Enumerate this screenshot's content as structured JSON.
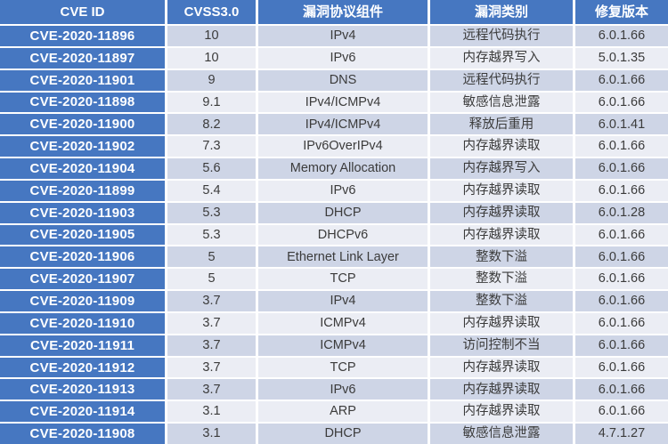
{
  "chart_data": {
    "type": "table",
    "columns": [
      "CVE ID",
      "CVSS3.0",
      "漏洞协议组件",
      "漏洞类别",
      "修复版本"
    ],
    "rows": [
      [
        "CVE-2020-11896",
        "10",
        "IPv4",
        "远程代码执行",
        "6.0.1.66"
      ],
      [
        "CVE-2020-11897",
        "10",
        "IPv6",
        "内存越界写入",
        "5.0.1.35"
      ],
      [
        "CVE-2020-11901",
        "9",
        "DNS",
        "远程代码执行",
        "6.0.1.66"
      ],
      [
        "CVE-2020-11898",
        "9.1",
        "IPv4/ICMPv4",
        "敏感信息泄露",
        "6.0.1.66"
      ],
      [
        "CVE-2020-11900",
        "8.2",
        "IPv4/ICMPv4",
        "释放后重用",
        "6.0.1.41"
      ],
      [
        "CVE-2020-11902",
        "7.3",
        "IPv6OverIPv4",
        "内存越界读取",
        "6.0.1.66"
      ],
      [
        "CVE-2020-11904",
        "5.6",
        "Memory Allocation",
        "内存越界写入",
        "6.0.1.66"
      ],
      [
        "CVE-2020-11899",
        "5.4",
        "IPv6",
        "内存越界读取",
        "6.0.1.66"
      ],
      [
        "CVE-2020-11903",
        "5.3",
        "DHCP",
        "内存越界读取",
        "6.0.1.28"
      ],
      [
        "CVE-2020-11905",
        "5.3",
        "DHCPv6",
        "内存越界读取",
        "6.0.1.66"
      ],
      [
        "CVE-2020-11906",
        "5",
        "Ethernet Link Layer",
        "整数下溢",
        "6.0.1.66"
      ],
      [
        "CVE-2020-11907",
        "5",
        "TCP",
        "整数下溢",
        "6.0.1.66"
      ],
      [
        "CVE-2020-11909",
        "3.7",
        "IPv4",
        "整数下溢",
        "6.0.1.66"
      ],
      [
        "CVE-2020-11910",
        "3.7",
        "ICMPv4",
        "内存越界读取",
        "6.0.1.66"
      ],
      [
        "CVE-2020-11911",
        "3.7",
        "ICMPv4",
        "访问控制不当",
        "6.0.1.66"
      ],
      [
        "CVE-2020-11912",
        "3.7",
        "TCP",
        "内存越界读取",
        "6.0.1.66"
      ],
      [
        "CVE-2020-11913",
        "3.7",
        "IPv6",
        "内存越界读取",
        "6.0.1.66"
      ],
      [
        "CVE-2020-11914",
        "3.1",
        "ARP",
        "内存越界读取",
        "6.0.1.66"
      ],
      [
        "CVE-2020-11908",
        "3.1",
        "DHCP",
        "敏感信息泄露",
        "4.7.1.27"
      ]
    ]
  },
  "colors": {
    "header_bg": "#4677c1",
    "cve_column_bg": "#4677c1",
    "band_odd": "#ced5e6",
    "band_even": "#ebedf4",
    "border": "#ffffff",
    "header_text": "#ffffff",
    "body_text": "#3b3b3b"
  }
}
